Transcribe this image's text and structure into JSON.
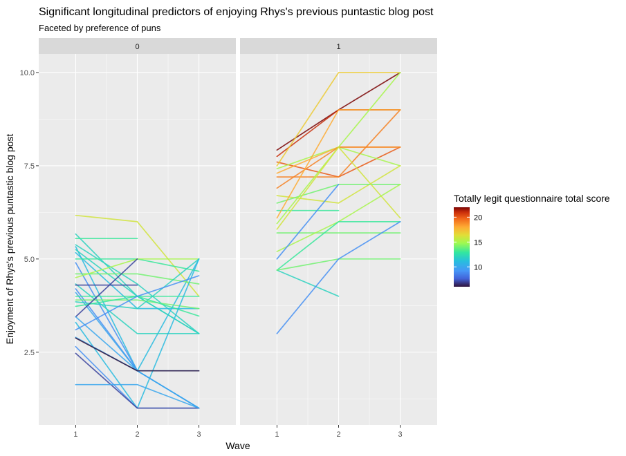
{
  "chart_data": {
    "type": "line",
    "title": "Significant longitudinal predictors of enjoying Rhys's previous puntastic blog post",
    "subtitle": "Faceted by preference of puns",
    "xlabel": "Wave",
    "ylabel": "Enjoyment of Rhys's previous puntastic blog post",
    "x_ticks": [
      "1",
      "2",
      "3"
    ],
    "y_ticks": [
      "2.5",
      "5.0",
      "7.5",
      "10.0"
    ],
    "ylim": [
      0.55,
      10.5
    ],
    "grid": true,
    "facets": [
      "0",
      "1"
    ],
    "legend": {
      "title": "Totally legit questionnaire total score",
      "ticks": [
        "10",
        "15",
        "20"
      ],
      "range": [
        6,
        22
      ],
      "position": "right"
    },
    "series": [
      {
        "facet": "0",
        "score": 16,
        "values": [
          6.17,
          6.0,
          4.0
        ]
      },
      {
        "facet": "0",
        "score": 12,
        "values": [
          5.67,
          4.0,
          3.0
        ]
      },
      {
        "facet": "0",
        "score": 13,
        "values": [
          5.55,
          5.55,
          null
        ]
      },
      {
        "facet": "0",
        "score": 12,
        "values": [
          5.38,
          4.33,
          3.0
        ]
      },
      {
        "facet": "0",
        "score": 11,
        "values": [
          5.33,
          2.0,
          5.0
        ]
      },
      {
        "facet": "0",
        "score": 12,
        "values": [
          5.25,
          4.0,
          3.0
        ]
      },
      {
        "facet": "0",
        "score": 11,
        "values": [
          5.17,
          3.67,
          3.67
        ]
      },
      {
        "facet": "0",
        "score": 13,
        "values": [
          5.0,
          5.0,
          4.67
        ]
      },
      {
        "facet": "0",
        "score": 9,
        "values": [
          4.9,
          2.0,
          1.0
        ]
      },
      {
        "facet": "0",
        "score": 14,
        "values": [
          4.6,
          4.6,
          4.33
        ]
      },
      {
        "facet": "0",
        "score": 15,
        "values": [
          4.5,
          5.0,
          5.0
        ]
      },
      {
        "facet": "0",
        "score": 12,
        "values": [
          4.33,
          3.0,
          3.0
        ]
      },
      {
        "facet": "0",
        "score": 7,
        "values": [
          4.3,
          4.3,
          null
        ]
      },
      {
        "facet": "0",
        "score": 9,
        "values": [
          4.2,
          2.0,
          1.0
        ]
      },
      {
        "facet": "0",
        "score": 10,
        "values": [
          4.1,
          2.0,
          2.0
        ]
      },
      {
        "facet": "0",
        "score": 13,
        "values": [
          4.0,
          4.0,
          4.0
        ]
      },
      {
        "facet": "0",
        "score": 14,
        "values": [
          3.9,
          3.9,
          3.67
        ]
      },
      {
        "facet": "0",
        "score": 12,
        "values": [
          3.85,
          3.67,
          5.0
        ]
      },
      {
        "facet": "0",
        "score": 13,
        "values": [
          3.73,
          4.0,
          3.47
        ]
      },
      {
        "facet": "0",
        "score": 7,
        "values": [
          3.45,
          5.0,
          null
        ]
      },
      {
        "facet": "0",
        "score": 10,
        "values": [
          3.45,
          2.0,
          1.0
        ]
      },
      {
        "facet": "0",
        "score": 11,
        "values": [
          3.3,
          1.0,
          5.0
        ]
      },
      {
        "facet": "0",
        "score": 9,
        "values": [
          3.1,
          4.0,
          4.55
        ]
      },
      {
        "facet": "0",
        "score": 10,
        "values": [
          2.9,
          2.0,
          1.0
        ]
      },
      {
        "facet": "0",
        "score": 6,
        "values": [
          2.88,
          2.0,
          2.0
        ]
      },
      {
        "facet": "0",
        "score": 9,
        "values": [
          2.65,
          1.0,
          1.0
        ]
      },
      {
        "facet": "0",
        "score": 7,
        "values": [
          2.47,
          1.0,
          1.0
        ]
      },
      {
        "facet": "0",
        "score": 10,
        "values": [
          1.63,
          1.63,
          1.0
        ]
      },
      {
        "facet": "1",
        "score": 22,
        "values": [
          7.92,
          9.0,
          10.0
        ]
      },
      {
        "facet": "1",
        "score": 21,
        "values": [
          7.75,
          9.0,
          9.0
        ]
      },
      {
        "facet": "1",
        "score": 20,
        "values": [
          7.6,
          7.2,
          8.0
        ]
      },
      {
        "facet": "1",
        "score": 17,
        "values": [
          7.5,
          10.0,
          10.0
        ]
      },
      {
        "facet": "1",
        "score": 15,
        "values": [
          7.42,
          8.0,
          7.5
        ]
      },
      {
        "facet": "1",
        "score": 18,
        "values": [
          7.3,
          8.0,
          8.0
        ]
      },
      {
        "facet": "1",
        "score": 19,
        "values": [
          7.2,
          7.2,
          9.0
        ]
      },
      {
        "facet": "1",
        "score": 19,
        "values": [
          6.9,
          8.0,
          8.0
        ]
      },
      {
        "facet": "1",
        "score": 16,
        "values": [
          6.7,
          6.5,
          7.5
        ]
      },
      {
        "facet": "1",
        "score": 14,
        "values": [
          6.5,
          7.0,
          7.0
        ]
      },
      {
        "facet": "1",
        "score": 13,
        "values": [
          6.3,
          6.3,
          null
        ]
      },
      {
        "facet": "1",
        "score": 18,
        "values": [
          6.1,
          9.0,
          9.0
        ]
      },
      {
        "facet": "1",
        "score": 15,
        "values": [
          5.95,
          8.0,
          10.0
        ]
      },
      {
        "facet": "1",
        "score": 16,
        "values": [
          5.8,
          8.0,
          6.1
        ]
      },
      {
        "facet": "1",
        "score": 14,
        "values": [
          5.7,
          5.7,
          5.7
        ]
      },
      {
        "facet": "1",
        "score": 15,
        "values": [
          5.2,
          6.0,
          7.0
        ]
      },
      {
        "facet": "1",
        "score": 9,
        "values": [
          5.0,
          7.0,
          null
        ]
      },
      {
        "facet": "1",
        "score": 13,
        "values": [
          4.7,
          6.0,
          6.0
        ]
      },
      {
        "facet": "1",
        "score": 12,
        "values": [
          4.7,
          4.0,
          null
        ]
      },
      {
        "facet": "1",
        "score": 14,
        "values": [
          4.7,
          5.0,
          5.0
        ]
      },
      {
        "facet": "1",
        "score": 9,
        "values": [
          3.0,
          5.0,
          6.0
        ]
      }
    ]
  }
}
